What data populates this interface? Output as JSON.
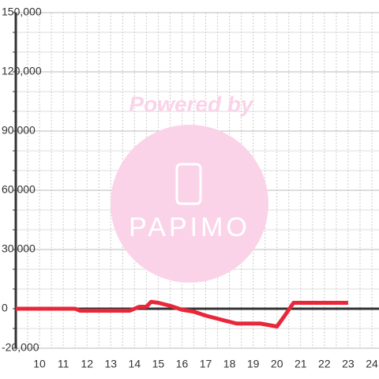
{
  "chart_data": {
    "type": "line",
    "x": [
      9,
      11.5,
      11.7,
      13.8,
      14.2,
      14.5,
      14.7,
      15,
      15.5,
      16,
      16.5,
      17,
      17.8,
      18.3,
      19.3,
      20,
      20.3,
      20.7,
      23
    ],
    "values": [
      0,
      0,
      -1000,
      -1000,
      1000,
      1000,
      3500,
      3000,
      1500,
      -500,
      -1500,
      -3500,
      -6000,
      -7500,
      -7500,
      -9000,
      -4000,
      3000,
      3000
    ],
    "color": "#e8283a",
    "xlim": [
      9,
      24.3
    ],
    "xticks": [
      10,
      11,
      12,
      13,
      14,
      15,
      16,
      17,
      18,
      19,
      20,
      21,
      22,
      23,
      24
    ],
    "ylim": [
      -20000,
      150000
    ],
    "yticks": [
      {
        "value": -20000,
        "label": "-20,000"
      },
      0,
      {
        "value": 30000,
        "label": "30,000"
      },
      {
        "value": 60000,
        "label": "60,000"
      },
      {
        "value": 90000,
        "label": "90,000"
      },
      {
        "value": 120000,
        "label": "120,000"
      },
      {
        "value": 150000,
        "label": "150,000"
      }
    ],
    "grid": true
  },
  "watermark": {
    "top": "Powered by",
    "brand": "PAPIMO"
  }
}
